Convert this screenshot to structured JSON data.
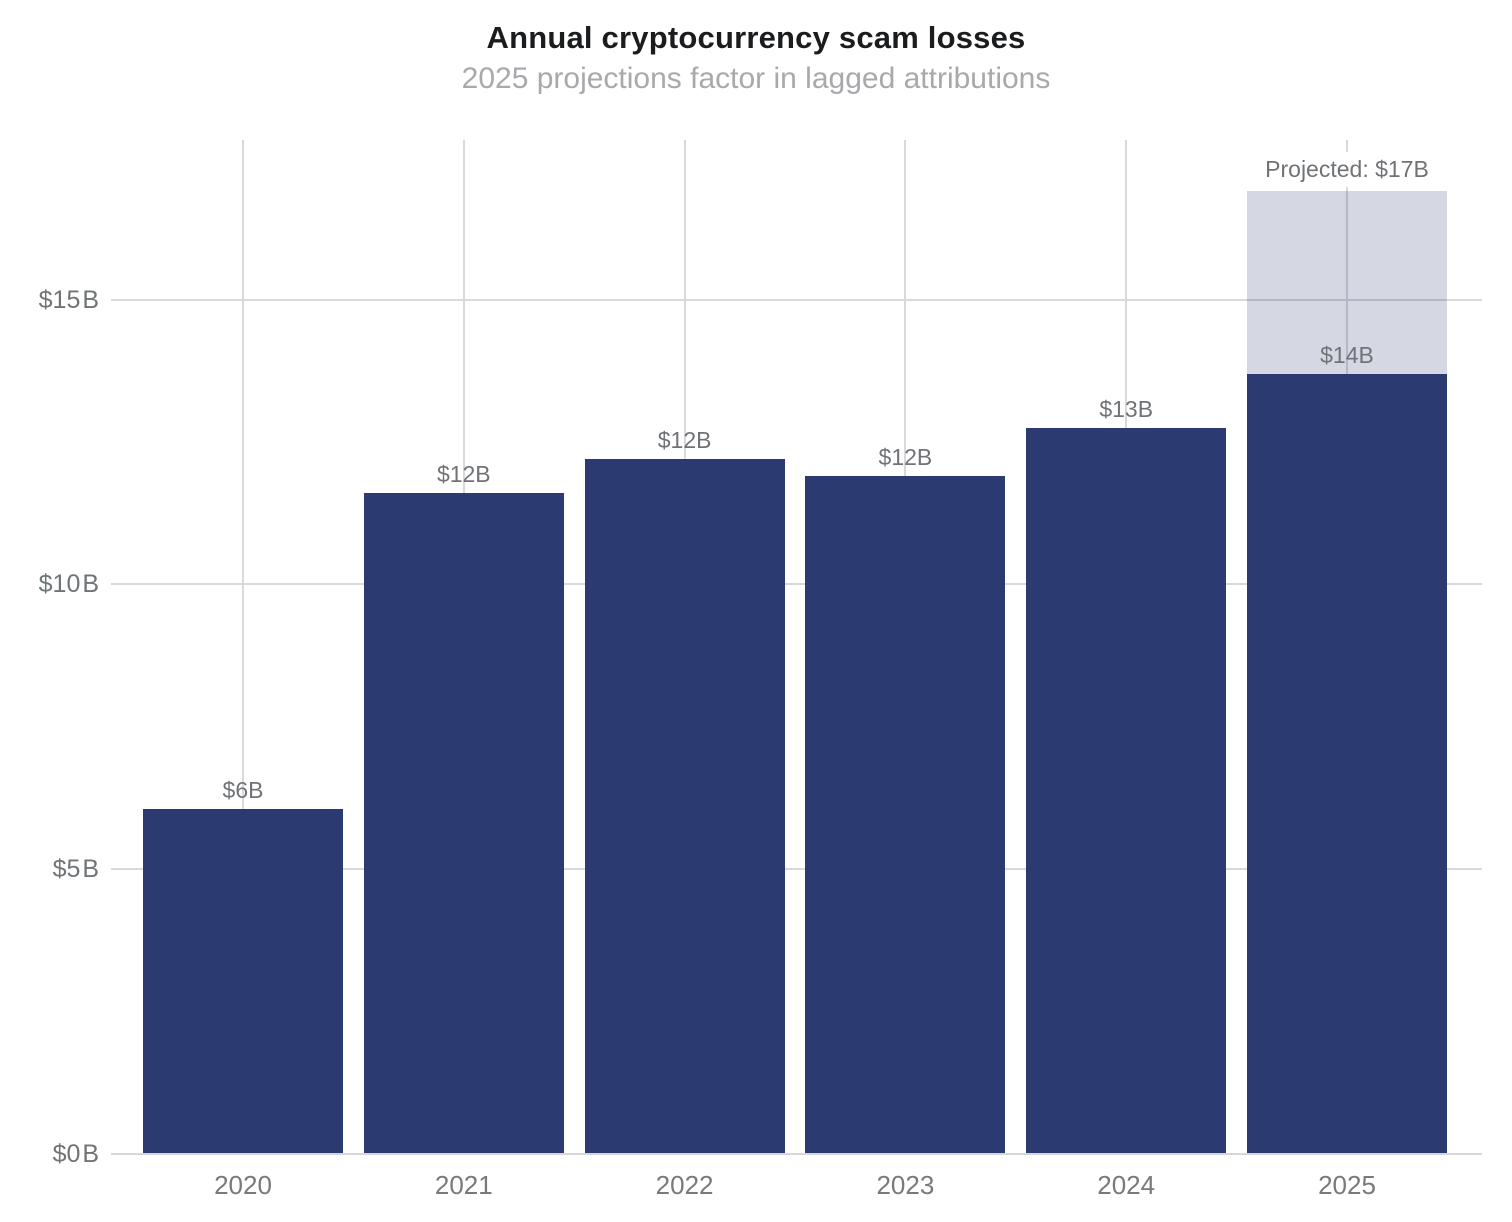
{
  "chart_data": {
    "type": "bar",
    "title": "Annual cryptocurrency scam losses",
    "subtitle": "2025 projections factor in lagged attributions",
    "categories": [
      "2020",
      "2021",
      "2022",
      "2023",
      "2024",
      "2025"
    ],
    "values": [
      6.05,
      11.6,
      12.2,
      11.9,
      12.75,
      13.7
    ],
    "bar_labels": [
      "$6B",
      "$12B",
      "$12B",
      "$12B",
      "$13B",
      "$14B"
    ],
    "projected": {
      "year": "2025",
      "total_value": 16.9,
      "label": "Projected: $17B"
    },
    "y_ticks": [
      {
        "value": 0,
        "label": "$0 B"
      },
      {
        "value": 5,
        "label": "$5 B"
      },
      {
        "value": 10,
        "label": "$10 B"
      },
      {
        "value": 15,
        "label": "$15 B"
      }
    ],
    "ylim": [
      0,
      17.8
    ],
    "xlabel": "",
    "ylabel": "",
    "grid": true,
    "legend": "none",
    "colors": {
      "bar": "#2b3a70",
      "projected_bar_fill": "#d5d8e4",
      "gridline": "#d9d9db",
      "title_text": "#1b1c1e",
      "subtitle_text": "#a7a9ac",
      "axis_text": "#717477",
      "value_label_text": "#707376"
    }
  }
}
